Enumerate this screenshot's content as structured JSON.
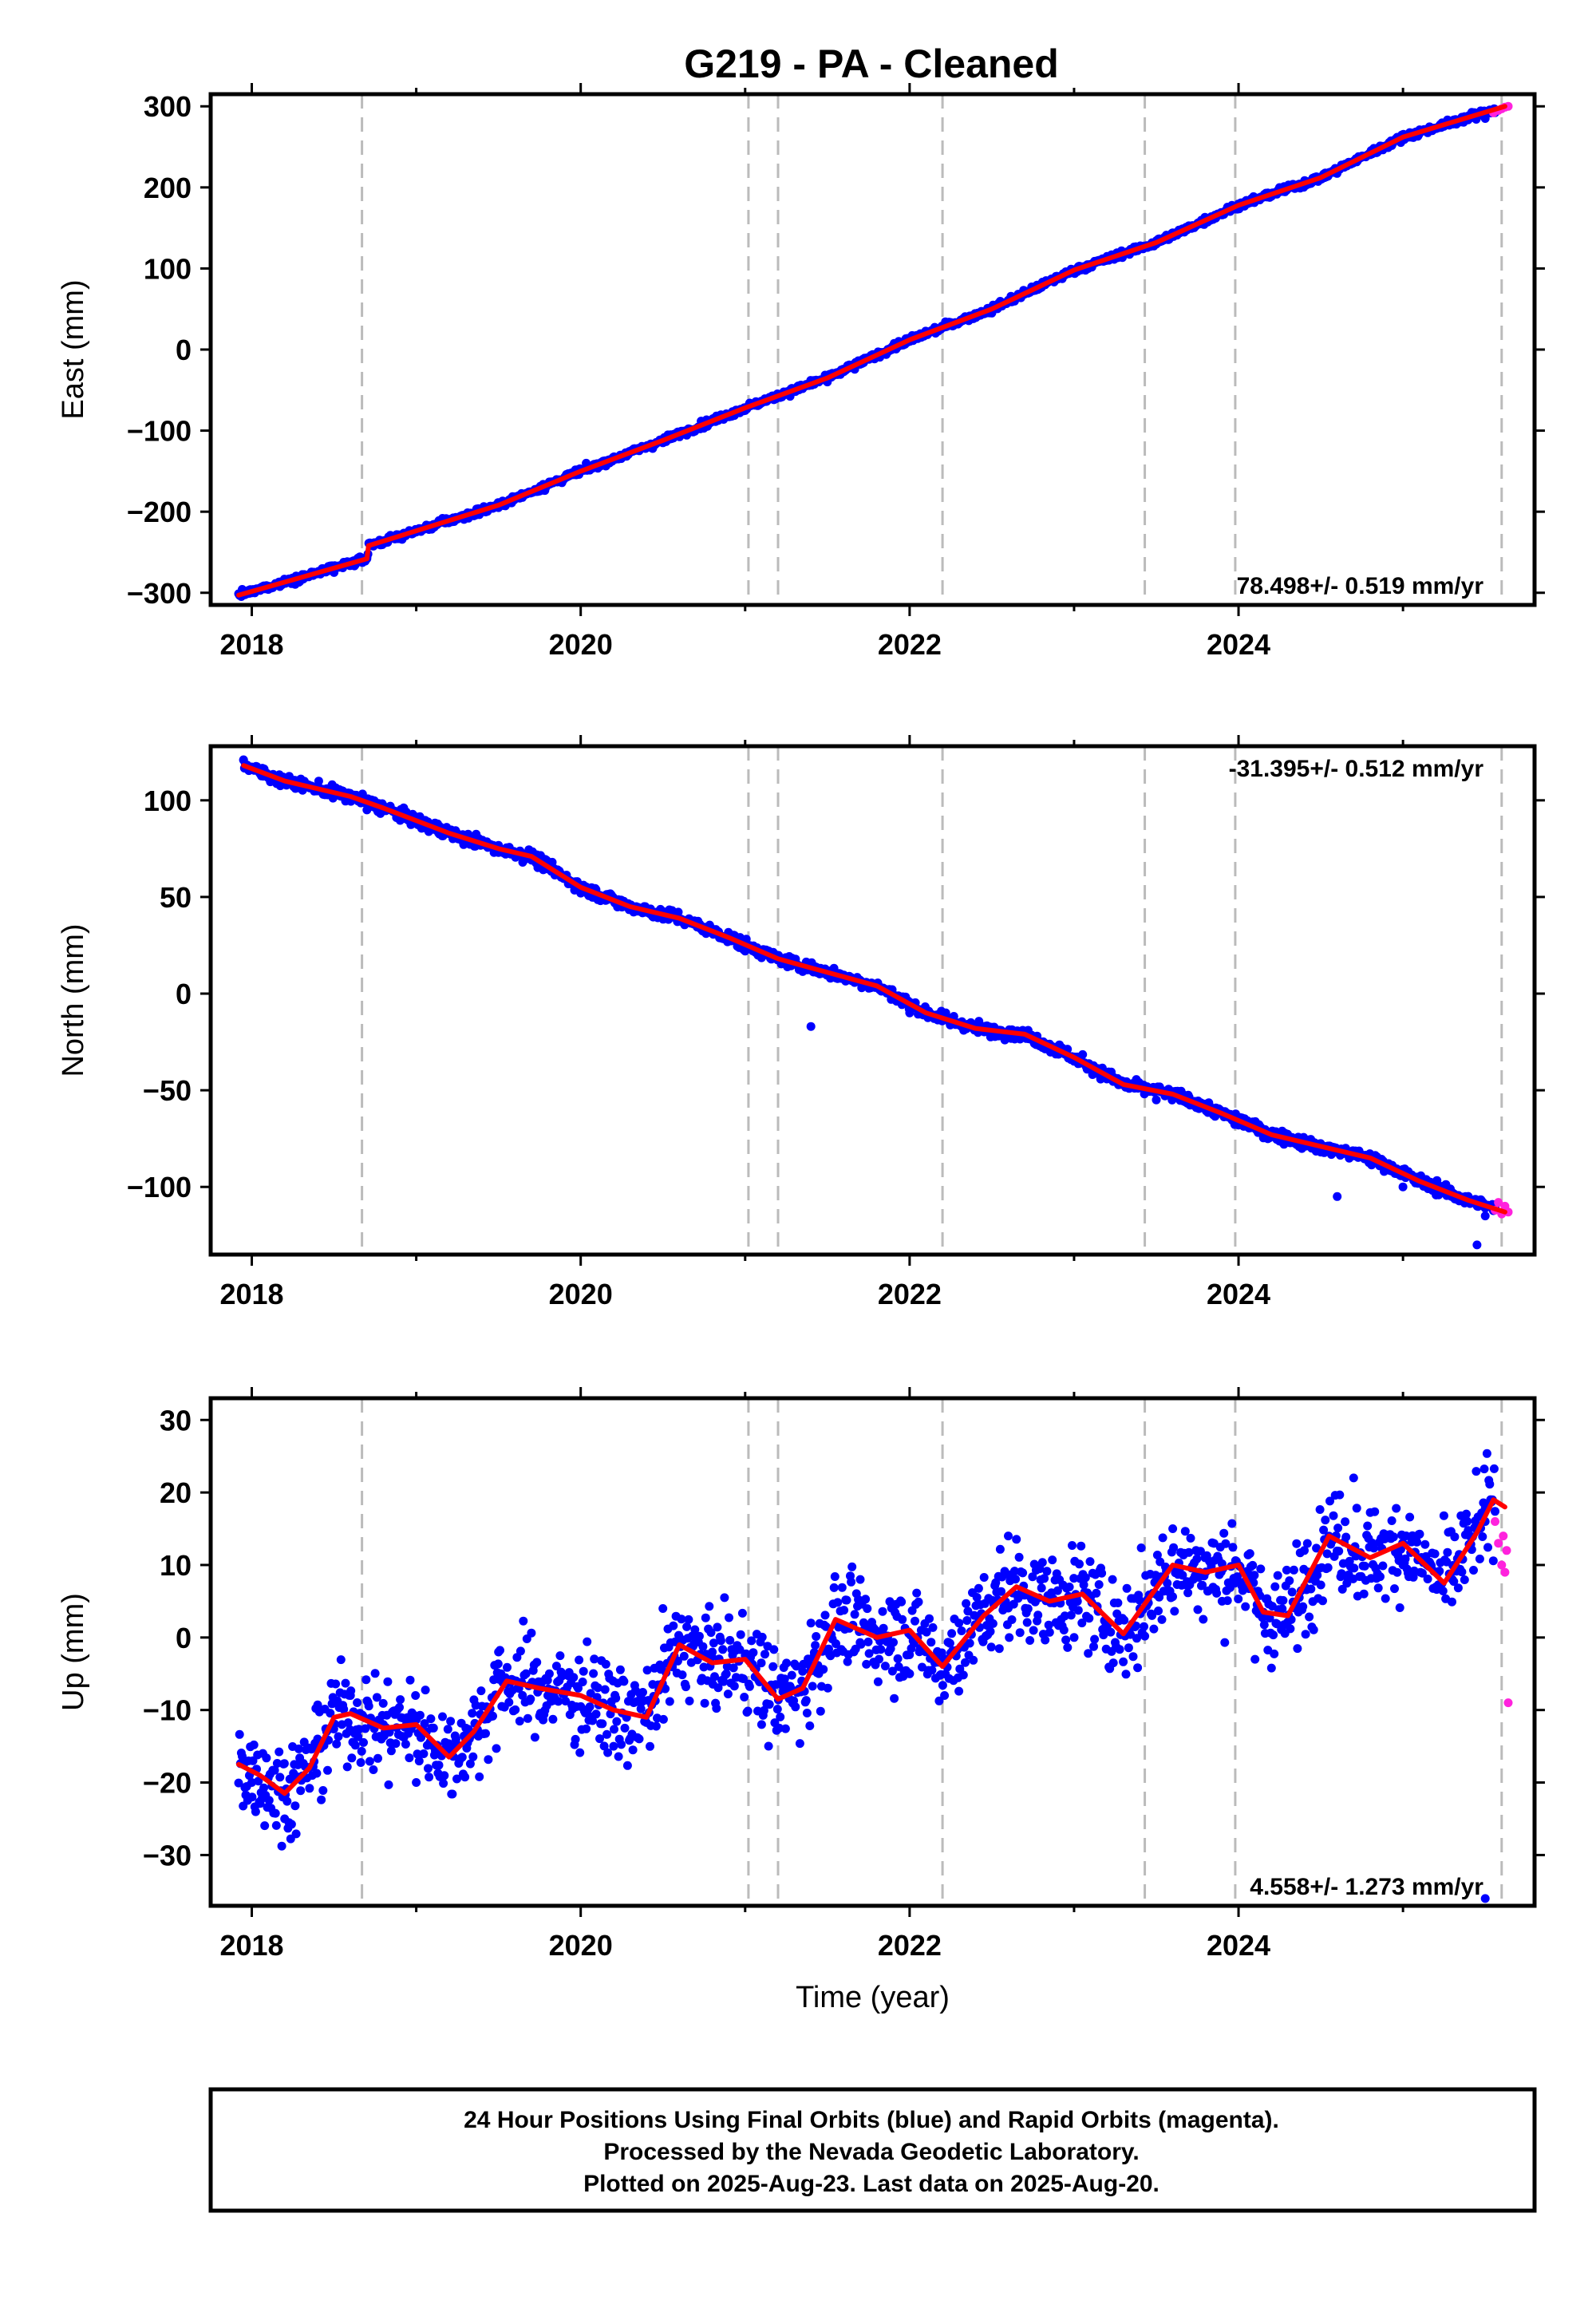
{
  "title": "G219  - PA - Cleaned",
  "colors": {
    "final_points": "#0000ff",
    "rapid_points": "#ff22dd",
    "model_line": "#ff0000",
    "event_lines": "#bbbbbb",
    "frame": "#000000"
  },
  "chart_data": [
    {
      "id": "east",
      "type": "scatter",
      "ylabel": "East (mm)",
      "xlabel": "",
      "xlim": [
        2017.75,
        2025.8
      ],
      "ylim": [
        -315,
        315
      ],
      "yticks": [
        -300,
        -200,
        -100,
        0,
        100,
        200,
        300
      ],
      "ytick_labels": [
        "−300",
        "−200",
        "−100",
        "0",
        "100",
        "200",
        "300"
      ],
      "xticks": [
        2018,
        2020,
        2022,
        2024
      ],
      "xtick_labels": [
        "2018",
        "2020",
        "2022",
        "2024"
      ],
      "rate_text": "78.498+/- 0.519 mm/yr",
      "rate_position": "bottom-right",
      "trend": {
        "start": [
          2017.92,
          -303
        ],
        "end": [
          2025.62,
          300
        ],
        "slope_mm_per_yr": 78.498
      },
      "series": [
        {
          "name": "Final Orbits (blue)",
          "color": "#0000ff",
          "sample_points": [
            [
              2018.0,
              -300
            ],
            [
              2018.5,
              -275
            ],
            [
              2018.7,
              -258
            ],
            [
              2018.75,
              -240
            ],
            [
              2019.0,
              -225
            ],
            [
              2019.5,
              -195
            ],
            [
              2020.0,
              -150
            ],
            [
              2020.5,
              -115
            ],
            [
              2021.0,
              -75
            ],
            [
              2021.5,
              -40
            ],
            [
              2022.0,
              10
            ],
            [
              2022.5,
              45
            ],
            [
              2023.0,
              95
            ],
            [
              2023.5,
              130
            ],
            [
              2024.0,
              175
            ],
            [
              2024.5,
              210
            ],
            [
              2025.0,
              260
            ],
            [
              2025.5,
              285
            ]
          ]
        },
        {
          "name": "Rapid Orbits (magenta)",
          "color": "#ff22dd",
          "sample_points": [
            [
              2025.55,
              292
            ],
            [
              2025.58,
              295
            ],
            [
              2025.6,
              297
            ],
            [
              2025.62,
              299
            ],
            [
              2025.64,
              300
            ]
          ]
        }
      ],
      "model": {
        "name": "model",
        "color": "#ff0000",
        "x": [
          2017.92,
          2018.7,
          2018.71,
          2019.5,
          2020.0,
          2020.5,
          2021.0,
          2021.5,
          2022.0,
          2022.5,
          2023.0,
          2023.5,
          2024.0,
          2024.5,
          2025.0,
          2025.62
        ],
        "y": [
          -303,
          -258,
          -242,
          -192,
          -150,
          -112,
          -72,
          -35,
          12,
          50,
          98,
          132,
          178,
          212,
          262,
          300
        ]
      }
    },
    {
      "id": "north",
      "type": "scatter",
      "ylabel": "North (mm)",
      "xlabel": "",
      "xlim": [
        2017.75,
        2025.8
      ],
      "ylim": [
        -135,
        128
      ],
      "yticks": [
        -100,
        -50,
        0,
        50,
        100
      ],
      "ytick_labels": [
        "−100",
        "−50",
        "0",
        "50",
        "100"
      ],
      "xticks": [
        2018,
        2020,
        2022,
        2024
      ],
      "xtick_labels": [
        "2018",
        "2020",
        "2022",
        "2024"
      ],
      "rate_text": "-31.395+/- 0.512 mm/yr",
      "rate_position": "top-right",
      "trend": {
        "slope_mm_per_yr": -31.395
      },
      "series": [
        {
          "name": "Final Orbits (blue)",
          "color": "#0000ff",
          "sample_points": [
            [
              2017.95,
              121
            ],
            [
              2018.5,
              105
            ],
            [
              2018.7,
              95
            ],
            [
              2019.0,
              88
            ],
            [
              2019.5,
              73
            ],
            [
              2020.0,
              52
            ],
            [
              2020.5,
              42
            ],
            [
              2021.0,
              22
            ],
            [
              2021.5,
              10
            ],
            [
              2021.4,
              -17
            ],
            [
              2022.0,
              -10
            ],
            [
              2022.5,
              -22
            ],
            [
              2023.0,
              -35
            ],
            [
              2023.5,
              -55
            ],
            [
              2024.0,
              -68
            ],
            [
              2024.5,
              -82
            ],
            [
              2024.6,
              -105
            ],
            [
              2025.0,
              -100
            ],
            [
              2025.5,
              -115
            ],
            [
              2025.45,
              -130
            ]
          ]
        },
        {
          "name": "Rapid Orbits (magenta)",
          "color": "#ff22dd",
          "sample_points": [
            [
              2025.56,
              -112
            ],
            [
              2025.58,
              -108
            ],
            [
              2025.6,
              -114
            ],
            [
              2025.62,
              -110
            ],
            [
              2025.64,
              -113
            ]
          ]
        }
      ],
      "model": {
        "name": "model",
        "color": "#ff0000",
        "x": [
          2017.95,
          2018.2,
          2018.6,
          2018.8,
          2019.2,
          2019.5,
          2019.7,
          2020.0,
          2020.3,
          2020.6,
          2020.9,
          2021.2,
          2021.5,
          2021.8,
          2022.1,
          2022.4,
          2022.7,
          2023.0,
          2023.3,
          2023.6,
          2023.9,
          2024.2,
          2024.5,
          2024.8,
          2025.1,
          2025.4,
          2025.62
        ],
        "y": [
          118,
          110,
          102,
          96,
          83,
          75,
          71,
          55,
          45,
          39,
          29,
          18,
          11,
          4,
          -10,
          -18,
          -21,
          -33,
          -47,
          -52,
          -62,
          -73,
          -79,
          -85,
          -97,
          -107,
          -113
        ]
      }
    },
    {
      "id": "up",
      "type": "scatter",
      "ylabel": "Up (mm)",
      "xlabel": "Time (year)",
      "xlim": [
        2017.75,
        2025.8
      ],
      "ylim": [
        -37,
        33
      ],
      "yticks": [
        -30,
        -20,
        -10,
        0,
        10,
        20,
        30
      ],
      "ytick_labels": [
        "−30",
        "−20",
        "−10",
        "0",
        "10",
        "20",
        "30"
      ],
      "xticks": [
        2018,
        2020,
        2022,
        2024
      ],
      "xtick_labels": [
        "2018",
        "2020",
        "2022",
        "2024"
      ],
      "rate_text": "4.558+/- 1.273 mm/yr",
      "rate_position": "bottom-right",
      "trend": {
        "slope_mm_per_yr": 4.558
      },
      "series": [
        {
          "name": "Final Orbits (blue)",
          "color": "#0000ff",
          "sample_points": [
            [
              2018.0,
              -20
            ],
            [
              2018.2,
              -25
            ],
            [
              2018.4,
              -14
            ],
            [
              2018.6,
              -8
            ],
            [
              2018.8,
              -12
            ],
            [
              2019.0,
              -20
            ],
            [
              2019.3,
              -14
            ],
            [
              2019.5,
              -2
            ],
            [
              2019.8,
              -8
            ],
            [
              2020.2,
              -15
            ],
            [
              2020.5,
              4
            ],
            [
              2020.8,
              -2
            ],
            [
              2021.1,
              -12
            ],
            [
              2021.4,
              2
            ],
            [
              2021.7,
              8
            ],
            [
              2022.0,
              -5
            ],
            [
              2022.3,
              2
            ],
            [
              2022.6,
              14
            ],
            [
              2023.0,
              0
            ],
            [
              2023.4,
              4
            ],
            [
              2023.6,
              15
            ],
            [
              2023.9,
              5
            ],
            [
              2024.1,
              -3
            ],
            [
              2024.4,
              12
            ],
            [
              2024.7,
              22
            ],
            [
              2025.0,
              10
            ],
            [
              2025.3,
              8
            ],
            [
              2025.5,
              16
            ],
            [
              2025.5,
              -36
            ]
          ]
        },
        {
          "name": "Rapid Orbits (magenta)",
          "color": "#ff22dd",
          "sample_points": [
            [
              2025.56,
              16
            ],
            [
              2025.58,
              13
            ],
            [
              2025.6,
              10
            ],
            [
              2025.61,
              14
            ],
            [
              2025.62,
              9
            ],
            [
              2025.63,
              12
            ],
            [
              2025.64,
              -9
            ]
          ]
        }
      ],
      "model": {
        "name": "model",
        "color": "#ff0000",
        "x": [
          2017.92,
          2018.05,
          2018.2,
          2018.35,
          2018.5,
          2018.6,
          2018.8,
          2019.0,
          2019.2,
          2019.35,
          2019.55,
          2019.75,
          2020.0,
          2020.2,
          2020.4,
          2020.6,
          2020.8,
          2021.0,
          2021.2,
          2021.35,
          2021.55,
          2021.8,
          2022.0,
          2022.2,
          2022.45,
          2022.65,
          2022.85,
          2023.05,
          2023.3,
          2023.6,
          2023.8,
          2024.0,
          2024.15,
          2024.3,
          2024.55,
          2024.8,
          2025.0,
          2025.25,
          2025.45,
          2025.55,
          2025.62
        ],
        "y": [
          -17.5,
          -19,
          -21.5,
          -18,
          -11,
          -10.5,
          -12.5,
          -12,
          -16.5,
          -13,
          -6,
          -7,
          -8,
          -10,
          -11,
          -1,
          -3.5,
          -3,
          -8.5,
          -7,
          2.5,
          0,
          1,
          -4,
          3,
          7,
          5,
          6,
          0.5,
          10,
          9,
          10,
          3.5,
          3,
          14,
          11,
          13,
          7.5,
          14.5,
          19,
          18
        ]
      }
    }
  ],
  "event_years": [
    2018.67,
    2021.02,
    2021.2,
    2022.2,
    2023.43,
    2023.98,
    2025.6
  ],
  "footer": {
    "line1": "24 Hour Positions Using Final Orbits (blue) and Rapid Orbits (magenta).",
    "line2": "Processed by the Nevada Geodetic Laboratory.",
    "line3": "Plotted on 2025-Aug-23. Last data on 2025-Aug-20."
  }
}
